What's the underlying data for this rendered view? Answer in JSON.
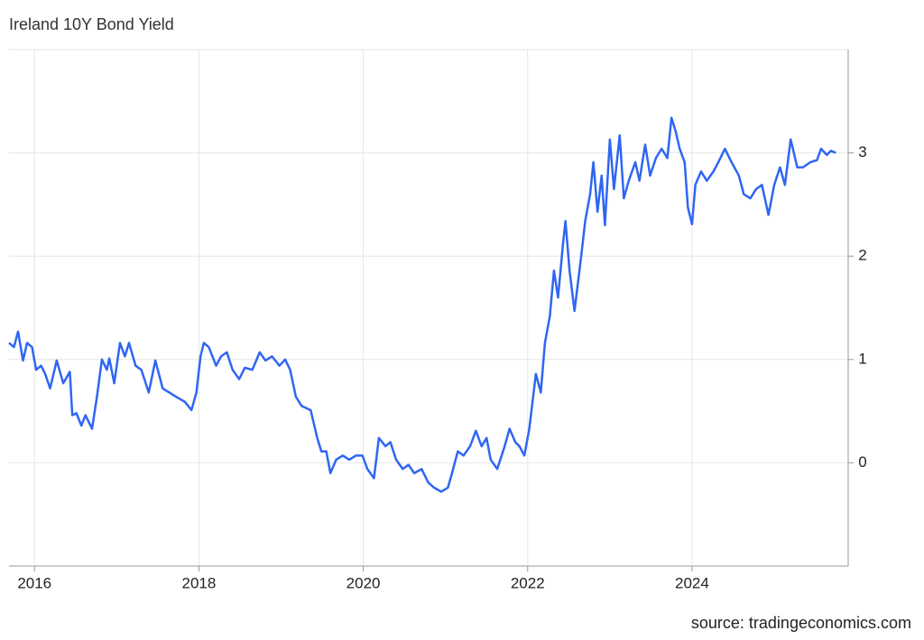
{
  "chart_data": {
    "type": "line",
    "title": "Ireland 10Y Bond Yield",
    "source": "source: tradingeconomics.com",
    "color": "#2f66f2",
    "grid": true,
    "y_axis_side": "right",
    "xlim": [
      2015.69,
      2025.9
    ],
    "xticks": [
      2016,
      2018,
      2020,
      2022,
      2024
    ],
    "ylim": [
      -1,
      4
    ],
    "yticks": [
      0,
      1,
      2,
      3
    ],
    "x": [
      2015.69,
      2015.75,
      2015.8,
      2015.86,
      2015.91,
      2015.97,
      2016.02,
      2016.08,
      2016.13,
      2016.19,
      2016.27,
      2016.35,
      2016.43,
      2016.46,
      2016.51,
      2016.57,
      2016.62,
      2016.7,
      2016.76,
      2016.82,
      2016.88,
      2016.91,
      2016.97,
      2017.04,
      2017.1,
      2017.15,
      2017.23,
      2017.3,
      2017.39,
      2017.47,
      2017.56,
      2017.64,
      2017.72,
      2017.83,
      2017.91,
      2017.97,
      2018.02,
      2018.06,
      2018.12,
      2018.21,
      2018.27,
      2018.34,
      2018.41,
      2018.49,
      2018.56,
      2018.65,
      2018.74,
      2018.81,
      2018.89,
      2018.98,
      2019.05,
      2019.11,
      2019.18,
      2019.25,
      2019.36,
      2019.44,
      2019.49,
      2019.55,
      2019.6,
      2019.67,
      2019.75,
      2019.83,
      2019.91,
      2019.99,
      2020.05,
      2020.13,
      2020.19,
      2020.27,
      2020.33,
      2020.4,
      2020.48,
      2020.55,
      2020.62,
      2020.71,
      2020.79,
      2020.86,
      2020.95,
      2021.03,
      2021.08,
      2021.15,
      2021.22,
      2021.3,
      2021.37,
      2021.44,
      2021.5,
      2021.55,
      2021.63,
      2021.72,
      2021.78,
      2021.85,
      2021.9,
      2021.96,
      2022.02,
      2022.1,
      2022.16,
      2022.21,
      2022.27,
      2022.32,
      2022.37,
      2022.43,
      2022.46,
      2022.51,
      2022.57,
      2022.65,
      2022.7,
      2022.76,
      2022.8,
      2022.85,
      2022.9,
      2022.94,
      2023.0,
      2023.05,
      2023.12,
      2023.17,
      2023.23,
      2023.31,
      2023.36,
      2023.43,
      2023.49,
      2023.56,
      2023.63,
      2023.7,
      2023.75,
      2023.8,
      2023.85,
      2023.91,
      2023.95,
      2024.0,
      2024.04,
      2024.11,
      2024.18,
      2024.26,
      2024.32,
      2024.4,
      2024.48,
      2024.57,
      2024.63,
      2024.71,
      2024.78,
      2024.85,
      2024.93,
      2025.0,
      2025.07,
      2025.13,
      2025.2,
      2025.28,
      2025.35,
      2025.44,
      2025.52,
      2025.57,
      2025.64,
      2025.69,
      2025.75
    ],
    "values": [
      1.16,
      1.12,
      1.27,
      0.99,
      1.16,
      1.12,
      0.9,
      0.94,
      0.86,
      0.72,
      0.99,
      0.77,
      0.88,
      0.46,
      0.48,
      0.36,
      0.46,
      0.33,
      0.64,
      1.0,
      0.9,
      1.01,
      0.77,
      1.16,
      1.03,
      1.16,
      0.94,
      0.9,
      0.68,
      0.99,
      0.72,
      0.68,
      0.64,
      0.59,
      0.51,
      0.68,
      1.03,
      1.16,
      1.12,
      0.94,
      1.03,
      1.07,
      0.9,
      0.81,
      0.92,
      0.9,
      1.07,
      0.99,
      1.03,
      0.94,
      1.0,
      0.9,
      0.64,
      0.55,
      0.51,
      0.24,
      0.11,
      0.11,
      -0.1,
      0.03,
      0.07,
      0.03,
      0.07,
      0.07,
      -0.06,
      -0.15,
      0.24,
      0.16,
      0.2,
      0.03,
      -0.06,
      -0.02,
      -0.1,
      -0.06,
      -0.19,
      -0.24,
      -0.28,
      -0.24,
      -0.1,
      0.11,
      0.07,
      0.16,
      0.31,
      0.16,
      0.24,
      0.03,
      -0.06,
      0.16,
      0.33,
      0.2,
      0.16,
      0.07,
      0.33,
      0.86,
      0.68,
      1.16,
      1.42,
      1.86,
      1.6,
      2.12,
      2.34,
      1.86,
      1.47,
      1.99,
      2.34,
      2.6,
      2.91,
      2.43,
      2.78,
      2.3,
      3.13,
      2.65,
      3.17,
      2.56,
      2.73,
      2.91,
      2.73,
      3.08,
      2.78,
      2.95,
      3.04,
      2.95,
      3.34,
      3.21,
      3.04,
      2.91,
      2.47,
      2.31,
      2.69,
      2.82,
      2.73,
      2.82,
      2.91,
      3.04,
      2.91,
      2.78,
      2.6,
      2.56,
      2.65,
      2.69,
      2.4,
      2.69,
      2.86,
      2.69,
      3.13,
      2.86,
      2.86,
      2.91,
      2.93,
      3.04,
      2.98,
      3.02,
      3.0
    ]
  }
}
